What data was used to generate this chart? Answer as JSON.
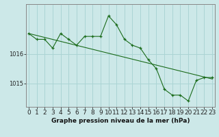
{
  "title": "Graphe pression niveau de la mer (hPa)",
  "bg_color": "#cce8e8",
  "grid_color": "#aad4d4",
  "line_color": "#1a6b1a",
  "marker_color": "#1a6b1a",
  "hours": [
    0,
    1,
    2,
    3,
    4,
    5,
    6,
    7,
    8,
    9,
    10,
    11,
    12,
    13,
    14,
    15,
    16,
    17,
    18,
    19,
    20,
    21,
    22,
    23
  ],
  "pressure": [
    1016.7,
    1016.5,
    1016.5,
    1016.2,
    1016.7,
    1016.5,
    1016.3,
    1016.6,
    1016.6,
    1016.6,
    1017.3,
    1017.0,
    1016.5,
    1016.3,
    1016.2,
    1015.8,
    1015.5,
    1014.8,
    1014.6,
    1014.6,
    1014.4,
    1015.1,
    1015.2,
    1015.2
  ],
  "trend_x": [
    0,
    23
  ],
  "trend_y": [
    1016.7,
    1015.15
  ],
  "yticks": [
    1015,
    1016
  ],
  "ylim": [
    1014.2,
    1017.7
  ],
  "xlim": [
    -0.3,
    23.3
  ],
  "xlabel_fontsize": 6.5,
  "title_fontsize": 6.5,
  "tick_fontsize": 6.0,
  "spine_color": "#888888"
}
